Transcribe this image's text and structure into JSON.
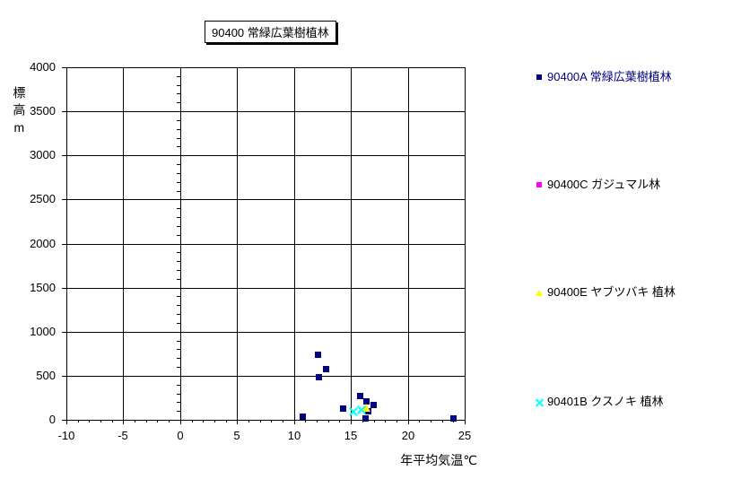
{
  "window": {
    "background": "#FFFFFF"
  },
  "chart_data": {
    "type": "scatter",
    "title": "90400 常緑広葉樹植林",
    "xlabel": "年平均気温℃",
    "ylabel": "標高m",
    "xlim": [
      -10,
      25
    ],
    "ylim": [
      0,
      4000
    ],
    "x_ticks": [
      -10,
      -5,
      0,
      5,
      10,
      15,
      20,
      25
    ],
    "y_ticks": [
      0,
      500,
      1000,
      1500,
      2000,
      2500,
      3000,
      3500,
      4000
    ],
    "x_minor_step": 1,
    "y_minor_step": 100,
    "grid": true,
    "grid_color": "#000000",
    "axis_color": "#000000",
    "plot_background": "#FFFFFF",
    "legend_position": "right",
    "series": [
      {
        "name": "90400A 常緑広葉樹植林",
        "marker": "square",
        "color": "#000080",
        "label_color": "#000080",
        "points": [
          [
            10.8,
            40
          ],
          [
            12.1,
            740
          ],
          [
            12.2,
            480
          ],
          [
            12.8,
            570
          ],
          [
            14.3,
            130
          ],
          [
            15.8,
            270
          ],
          [
            16.3,
            15
          ],
          [
            16.4,
            210
          ],
          [
            16.5,
            95
          ],
          [
            17,
            170
          ],
          [
            24,
            20
          ]
        ]
      },
      {
        "name": "90400C ガジュマル林",
        "marker": "square",
        "color": "#FF00FF",
        "label_color": "#000000",
        "points": []
      },
      {
        "name": "90400E ヤブツバキ 植林",
        "marker": "triangle",
        "color": "#FFFF00",
        "label_color": "#000000",
        "points": [
          [
            16.3,
            140
          ]
        ]
      },
      {
        "name": "90401B クスノキ 植林",
        "marker": "x",
        "color": "#00FFFF",
        "label_color": "#000000",
        "points": [
          [
            15.2,
            95
          ],
          [
            15.9,
            110
          ]
        ]
      }
    ]
  }
}
